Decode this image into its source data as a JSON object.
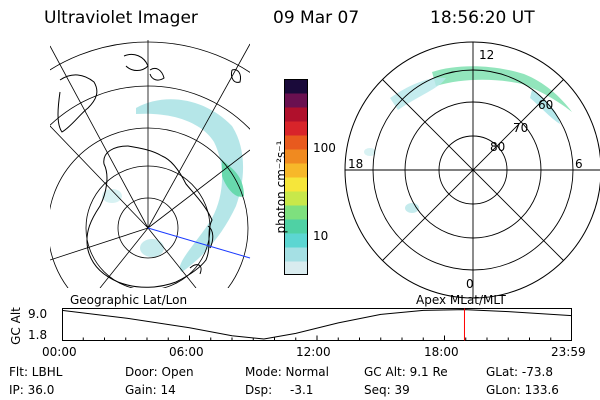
{
  "header": {
    "instrument": "Ultraviolet Imager",
    "date": "09 Mar 07",
    "time": "18:56:20 UT"
  },
  "colorbar": {
    "label": "photon cm⁻²s⁻¹",
    "ticks": [
      "100",
      "10"
    ],
    "scale": "log",
    "range": [
      2,
      400
    ],
    "colors": [
      "#d9ecef",
      "#a5e0e4",
      "#5cd6d2",
      "#4fd1a4",
      "#7ee07e",
      "#c8e84a",
      "#f6e63a",
      "#f7b829",
      "#f08a20",
      "#e85a1e",
      "#d8242a",
      "#b0102c",
      "#6a1050",
      "#1a0a3a"
    ]
  },
  "polar_plot": {
    "mlt_labels": [
      "12",
      "18",
      "6",
      "0"
    ],
    "lat_labels": [
      "60",
      "70",
      "80"
    ]
  },
  "bottom": {
    "left_label": "Geographic Lat/Lon",
    "right_label": "Apex  MLat/MLT",
    "yaxis_title": "GC Alt",
    "ytick_top": "9.0",
    "ytick_bottom": "1.8",
    "xticks": [
      "00:00",
      "06:00",
      "12:00",
      "18:00",
      "23:59"
    ],
    "current_time_marker_hours": 18.94,
    "line_color": "#000000",
    "marker_color": "#ff0000"
  },
  "info": {
    "row1": {
      "flt": "Flt: LBHL",
      "door": "Door: Open",
      "mode": "Mode: Normal",
      "gcalt": "GC Alt: 9.1 Re",
      "glat": "GLat: -73.8"
    },
    "row2": {
      "ip": "IP: 36.0",
      "gain": "Gain: 14",
      "dsp_label": "Dsp:",
      "dsp_value": "-3.1",
      "seq": "Seq: 39",
      "glon": "GLon: 133.6"
    }
  },
  "chart_data": [
    {
      "type": "line",
      "title": "",
      "xlabel": "",
      "ylabel": "GC Alt",
      "x_unit": "UT hours",
      "ylim": [
        1.8,
        9.0
      ],
      "x": [
        0,
        3,
        6,
        8,
        9.5,
        11,
        13,
        15,
        17,
        18.94,
        21,
        23.98
      ],
      "series": [
        {
          "values": [
            8.9,
            7.0,
            4.6,
            2.6,
            1.8,
            3.2,
            5.8,
            7.9,
            8.9,
            9.1,
            8.6,
            7.6
          ]
        }
      ]
    }
  ]
}
